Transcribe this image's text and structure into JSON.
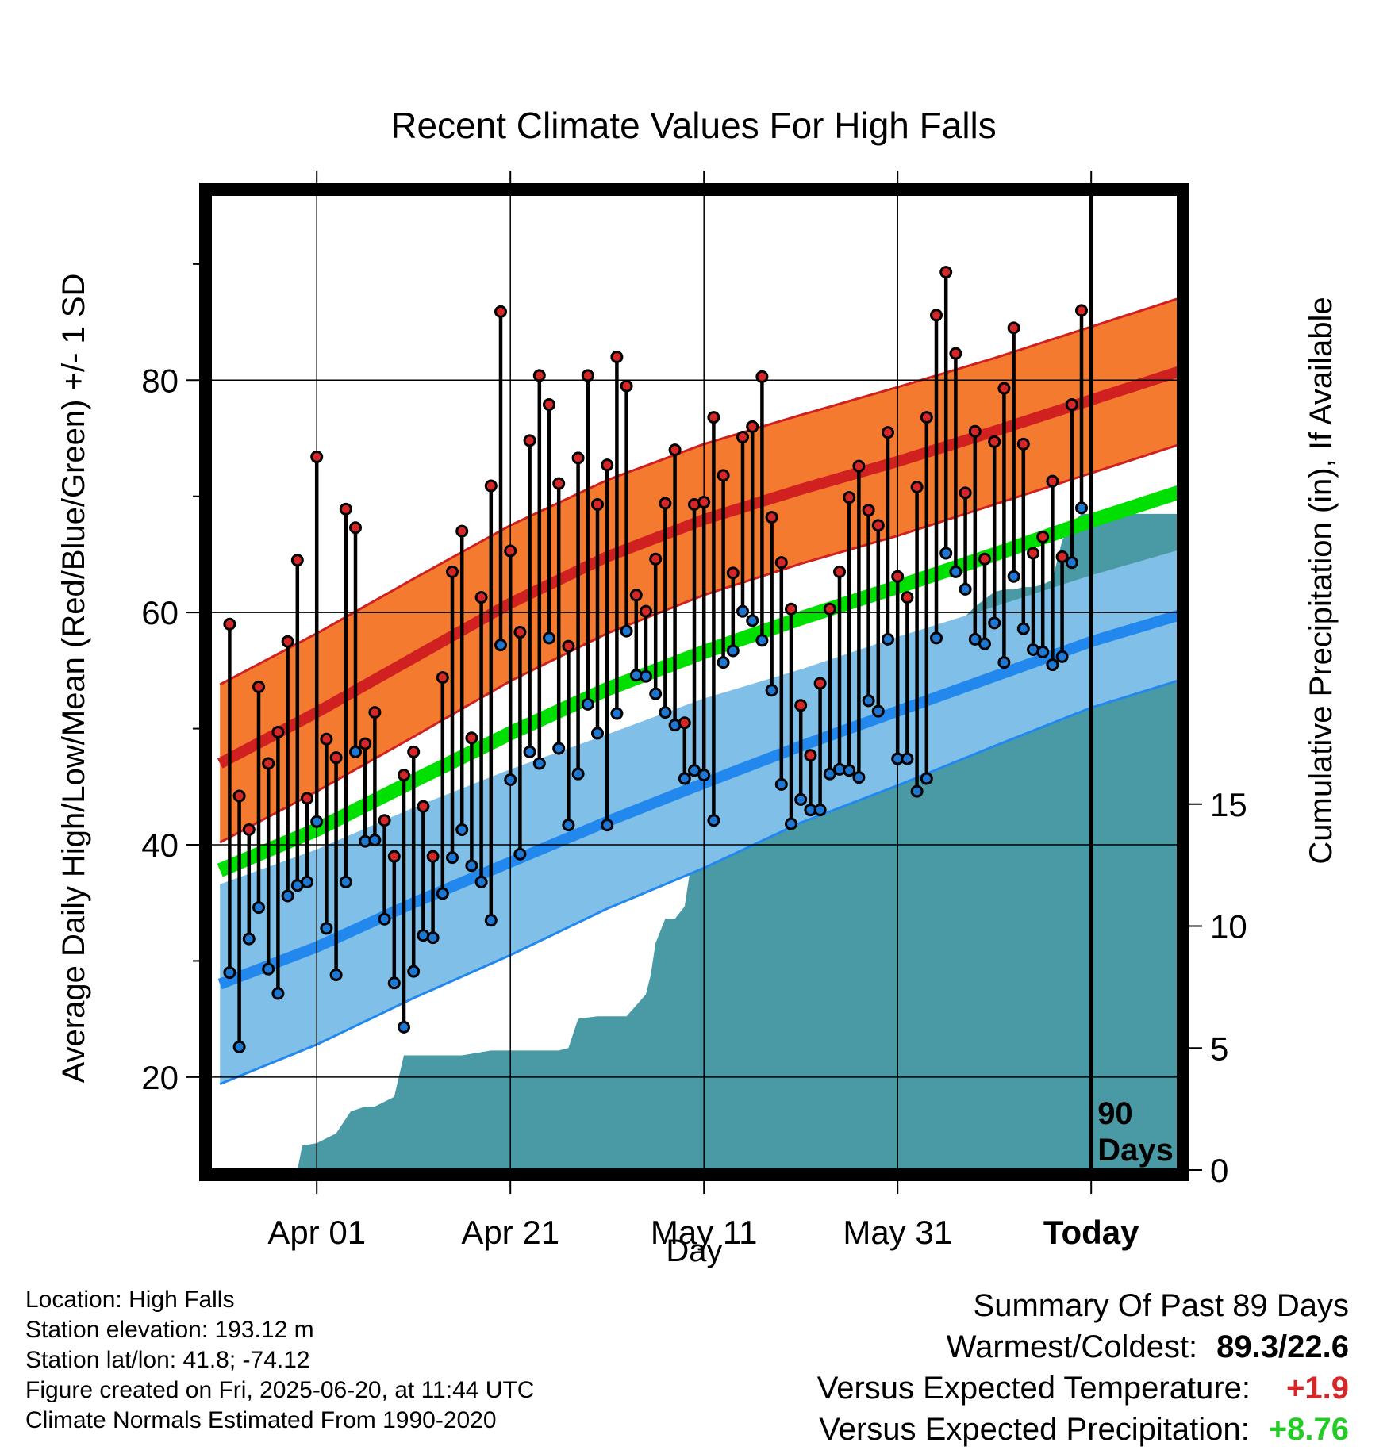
{
  "chart_data": {
    "type": "line",
    "title": "Recent Climate Values For High Falls",
    "xlabel": "Day",
    "ylabel": "Average Daily High/Low/Mean (Red/Blue/Green) +/- 1 SD",
    "y2label": "Cumulative Precipitation (in), If Available",
    "x_tick_labels": [
      "Apr 01",
      "Apr 21",
      "May 11",
      "May 31",
      "Today"
    ],
    "x_tick_days": [
      9,
      29,
      49,
      69,
      89
    ],
    "xlim": [
      -2,
      98
    ],
    "ylim": [
      12,
      96
    ],
    "y_ticks": [
      20,
      40,
      60,
      80
    ],
    "y2lim": [
      0,
      40
    ],
    "y2_ticks": [
      0,
      5,
      10,
      15
    ],
    "today_marker_label_1": "90",
    "today_marker_label_2": "Days",
    "colors": {
      "high_band": "#f47a30",
      "high_normal": "#d02020",
      "low_band": "#80c0e8",
      "low_normal": "#2288ee",
      "mean_normal": "#00e000",
      "precip": "#4a9aa5",
      "high_point": "#d62728",
      "low_point": "#1f77d4"
    },
    "normals": {
      "day": [
        -1,
        9,
        19,
        29,
        39,
        49,
        59,
        69,
        79,
        89,
        99
      ],
      "high": [
        47,
        51.4,
        56.1,
        60.8,
        64.8,
        68.0,
        70.6,
        73.0,
        75.6,
        78.3,
        81
      ],
      "high_sd": [
        6.8,
        6.8,
        6.8,
        6.7,
        6.6,
        6.5,
        6.4,
        6.4,
        6.3,
        6.3,
        6.3
      ],
      "low": [
        28,
        31.2,
        35.0,
        38.5,
        42.0,
        45.3,
        48.5,
        51.5,
        54.5,
        57.5,
        60
      ],
      "low_sd": [
        8.6,
        8.4,
        8.2,
        8.0,
        7.5,
        7.3,
        6.6,
        6.4,
        6.0,
        5.7,
        5.6
      ],
      "mean": [
        37.8,
        41.3,
        45.5,
        49.6,
        53.4,
        56.6,
        59.5,
        62.2,
        65.0,
        67.9,
        70.6
      ]
    },
    "series": [
      {
        "name": "High",
        "x": [
          0,
          1,
          2,
          3,
          4,
          5,
          6,
          7,
          8,
          9,
          10,
          11,
          12,
          13,
          14,
          15,
          16,
          17,
          18,
          19,
          20,
          21,
          22,
          23,
          24,
          25,
          26,
          27,
          28,
          29,
          30,
          31,
          32,
          33,
          34,
          35,
          36,
          37,
          38,
          39,
          40,
          41,
          42,
          43,
          44,
          45,
          46,
          47,
          48,
          49,
          50,
          51,
          52,
          53,
          54,
          55,
          56,
          57,
          58,
          59,
          60,
          61,
          62,
          63,
          64,
          65,
          66,
          67,
          68,
          69,
          70,
          71,
          72,
          73,
          74,
          75,
          76,
          77,
          78,
          79,
          80,
          81,
          82,
          83,
          84,
          85,
          86,
          87,
          88
        ],
        "values": [
          59.0,
          44.2,
          41.3,
          53.6,
          47.0,
          49.7,
          57.5,
          64.5,
          44.0,
          73.4,
          49.1,
          47.5,
          68.9,
          67.3,
          48.7,
          51.4,
          42.1,
          39.0,
          46.0,
          48.0,
          43.3,
          39.0,
          54.4,
          63.5,
          67.0,
          49.2,
          61.3,
          70.9,
          85.9,
          65.3,
          58.3,
          74.8,
          80.4,
          77.9,
          71.1,
          57.1,
          73.3,
          80.4,
          69.3,
          72.7,
          82.0,
          79.5,
          61.5,
          60.1,
          64.6,
          69.4,
          74.0,
          50.5,
          69.3,
          69.5,
          76.8,
          71.8,
          63.4,
          75.1,
          76.0,
          80.3,
          68.2,
          64.3,
          60.3,
          52.0,
          47.7,
          53.9,
          60.3,
          63.5,
          69.9,
          72.6,
          68.8,
          67.5,
          75.5,
          63.1,
          61.3,
          70.8,
          76.8,
          85.6,
          89.3,
          82.3,
          70.3,
          75.6,
          64.6,
          74.7,
          79.3,
          84.5,
          74.5,
          65.1,
          66.5,
          71.3,
          64.8,
          77.9,
          86.0
        ]
      },
      {
        "name": "Low",
        "x": [
          0,
          1,
          2,
          3,
          4,
          5,
          6,
          7,
          8,
          9,
          10,
          11,
          12,
          13,
          14,
          15,
          16,
          17,
          18,
          19,
          20,
          21,
          22,
          23,
          24,
          25,
          26,
          27,
          28,
          29,
          30,
          31,
          32,
          33,
          34,
          35,
          36,
          37,
          38,
          39,
          40,
          41,
          42,
          43,
          44,
          45,
          46,
          47,
          48,
          49,
          50,
          51,
          52,
          53,
          54,
          55,
          56,
          57,
          58,
          59,
          60,
          61,
          62,
          63,
          64,
          65,
          66,
          67,
          68,
          69,
          70,
          71,
          72,
          73,
          74,
          75,
          76,
          77,
          78,
          79,
          80,
          81,
          82,
          83,
          84,
          85,
          86,
          87,
          88
        ],
        "values": [
          29.0,
          22.6,
          31.9,
          34.6,
          29.3,
          27.2,
          35.6,
          36.5,
          36.8,
          42.0,
          32.8,
          28.8,
          36.8,
          48.0,
          40.3,
          40.4,
          33.6,
          28.1,
          24.3,
          29.1,
          32.2,
          32.0,
          35.8,
          38.9,
          41.3,
          38.2,
          36.8,
          33.5,
          57.2,
          45.6,
          39.2,
          48.0,
          47.0,
          57.8,
          48.3,
          41.7,
          46.1,
          52.1,
          49.6,
          41.7,
          51.3,
          58.4,
          54.6,
          54.5,
          53.0,
          51.4,
          50.3,
          45.7,
          46.4,
          46.0,
          42.1,
          55.7,
          56.7,
          60.1,
          59.3,
          57.6,
          53.3,
          45.2,
          41.8,
          43.9,
          43.0,
          43.0,
          46.1,
          46.5,
          46.4,
          45.8,
          52.4,
          51.5,
          57.7,
          47.4,
          47.4,
          44.6,
          45.7,
          57.8,
          65.1,
          63.5,
          62.0,
          57.7,
          57.3,
          59.1,
          55.7,
          63.1,
          58.6,
          56.8,
          56.6,
          55.5,
          56.2,
          64.3,
          69.0
        ]
      }
    ],
    "precipitation": {
      "x": [
        -1,
        7,
        7.5,
        9,
        11,
        12.5,
        14,
        15,
        17,
        18,
        19,
        20,
        22,
        23,
        24,
        27,
        28,
        28.5,
        30,
        31,
        32,
        34,
        35,
        36,
        38,
        39,
        40,
        41,
        43,
        43.5,
        44,
        45,
        46,
        47,
        48,
        48.5,
        50,
        51,
        52,
        53,
        55,
        56,
        58,
        59,
        60,
        61,
        62,
        64,
        65,
        67,
        68,
        69,
        69.5,
        70,
        71,
        72,
        73,
        74,
        75,
        76,
        77,
        78,
        79,
        80,
        81,
        82,
        83,
        84,
        85,
        86,
        87,
        88,
        98
      ],
      "values": [
        0,
        0,
        1.0,
        1.1,
        1.5,
        2.4,
        2.6,
        2.6,
        3.0,
        4.7,
        4.7,
        4.7,
        4.7,
        4.7,
        4.7,
        4.9,
        4.9,
        4.9,
        4.9,
        4.9,
        4.9,
        4.9,
        5.0,
        6.2,
        6.3,
        6.3,
        6.3,
        6.3,
        7.2,
        8.0,
        9.3,
        10.3,
        10.3,
        10.8,
        13.4,
        13.6,
        13.6,
        14.0,
        14.0,
        14.1,
        14.1,
        14.1,
        14.1,
        14.3,
        15.6,
        15.7,
        15.7,
        15.7,
        15.8,
        15.8,
        15.8,
        16.1,
        16.3,
        16.4,
        21.3,
        21.3,
        21.3,
        21.5,
        21.9,
        22.7,
        23.1,
        23.4,
        23.7,
        23.8,
        23.8,
        23.9,
        23.9,
        24.0,
        24.2,
        25.8,
        26.5,
        26.9,
        26.9
      ]
    }
  },
  "footer": {
    "location": "Location: High Falls",
    "elevation": "Station elevation: 193.12 m",
    "latlon": "Station lat/lon: 41.8; -74.12",
    "created": "Figure created on Fri, 2025-06-20, at 11:44 UTC",
    "normals": "Climate Normals Estimated From 1990-2020"
  },
  "summary": {
    "heading": "Summary Of Past 89 Days",
    "warm_label": "Warmest/Coldest:",
    "warm_value": "89.3/22.6",
    "temp_label": "Versus Expected Temperature:",
    "temp_value": "+1.9",
    "precip_label": "Versus Expected Precipitation:",
    "precip_value": "+8.76"
  }
}
